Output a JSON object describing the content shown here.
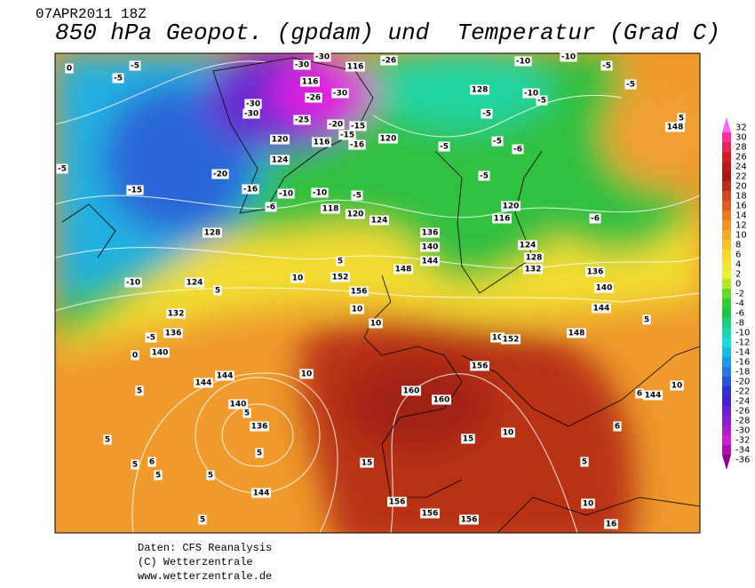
{
  "header": {
    "date": "07APR2011 18Z",
    "title": "850 hPa Geopot. (gpdam) und  Temperatur (Grad C)"
  },
  "map": {
    "contour_labels": [
      0,
      -5,
      -5,
      -30,
      -30,
      116,
      -26,
      -10,
      -10,
      -5,
      -5,
      128,
      -10,
      -5,
      -30,
      -30,
      -26,
      116,
      -30,
      -25,
      -20,
      -15,
      -15,
      120,
      116,
      -16,
      120,
      -5,
      -5,
      -5,
      -6,
      124,
      -20,
      -16,
      -10,
      -5,
      -10,
      -5,
      120,
      116,
      118,
      120,
      124,
      -6,
      -6,
      148,
      5,
      -5,
      -15,
      128,
      -10,
      124,
      132,
      136,
      -5,
      140,
      0,
      136,
      140,
      144,
      148,
      128,
      124,
      132,
      136,
      140,
      144,
      10,
      152,
      156,
      10,
      10,
      5,
      5,
      10,
      152,
      156,
      10,
      144,
      144,
      140,
      136,
      5,
      5,
      5,
      144,
      5,
      160,
      160,
      15,
      10,
      15,
      5,
      156,
      156,
      156,
      10,
      16,
      5,
      5,
      5,
      6,
      5,
      6,
      144,
      10,
      6,
      5,
      148
    ]
  },
  "colorbar": {
    "steps": [
      {
        "value": 32,
        "color": "#ff66ff"
      },
      {
        "value": 30,
        "color": "#ff3399"
      },
      {
        "value": 28,
        "color": "#e8265a"
      },
      {
        "value": 26,
        "color": "#cc2222"
      },
      {
        "value": 24,
        "color": "#b81a1a"
      },
      {
        "value": 22,
        "color": "#a31919"
      },
      {
        "value": 20,
        "color": "#b8321a"
      },
      {
        "value": 18,
        "color": "#cc4a1e"
      },
      {
        "value": 16,
        "color": "#d9601f"
      },
      {
        "value": 14,
        "color": "#e57a22"
      },
      {
        "value": 12,
        "color": "#ee9426"
      },
      {
        "value": 10,
        "color": "#f5aa2a"
      },
      {
        "value": 8,
        "color": "#f7c22e"
      },
      {
        "value": 6,
        "color": "#f5d633"
      },
      {
        "value": 4,
        "color": "#f2e633"
      },
      {
        "value": 2,
        "color": "#e8f033"
      },
      {
        "value": 0,
        "color": "#b8e62e"
      },
      {
        "value": -2,
        "color": "#66d92b"
      },
      {
        "value": -4,
        "color": "#33cc33"
      },
      {
        "value": -6,
        "color": "#22c24a"
      },
      {
        "value": -8,
        "color": "#1fcc80"
      },
      {
        "value": -10,
        "color": "#1fd4b0"
      },
      {
        "value": -12,
        "color": "#1fd9d9"
      },
      {
        "value": -14,
        "color": "#1fb8e6"
      },
      {
        "value": -16,
        "color": "#1f99e6"
      },
      {
        "value": -18,
        "color": "#2277e0"
      },
      {
        "value": -20,
        "color": "#2855d6"
      },
      {
        "value": -22,
        "color": "#3333cc"
      },
      {
        "value": -24,
        "color": "#4422cc"
      },
      {
        "value": -26,
        "color": "#6622cc"
      },
      {
        "value": -28,
        "color": "#8822cc"
      },
      {
        "value": -30,
        "color": "#aa22cc"
      },
      {
        "value": -32,
        "color": "#cc22cc"
      },
      {
        "value": -34,
        "color": "#aa11aa"
      },
      {
        "value": -36,
        "color": "#880088"
      }
    ]
  },
  "footer": {
    "lines": [
      "Daten: CFS Reanalysis",
      "(C) Wetterzentrale",
      "www.wetterzentrale.de"
    ]
  }
}
